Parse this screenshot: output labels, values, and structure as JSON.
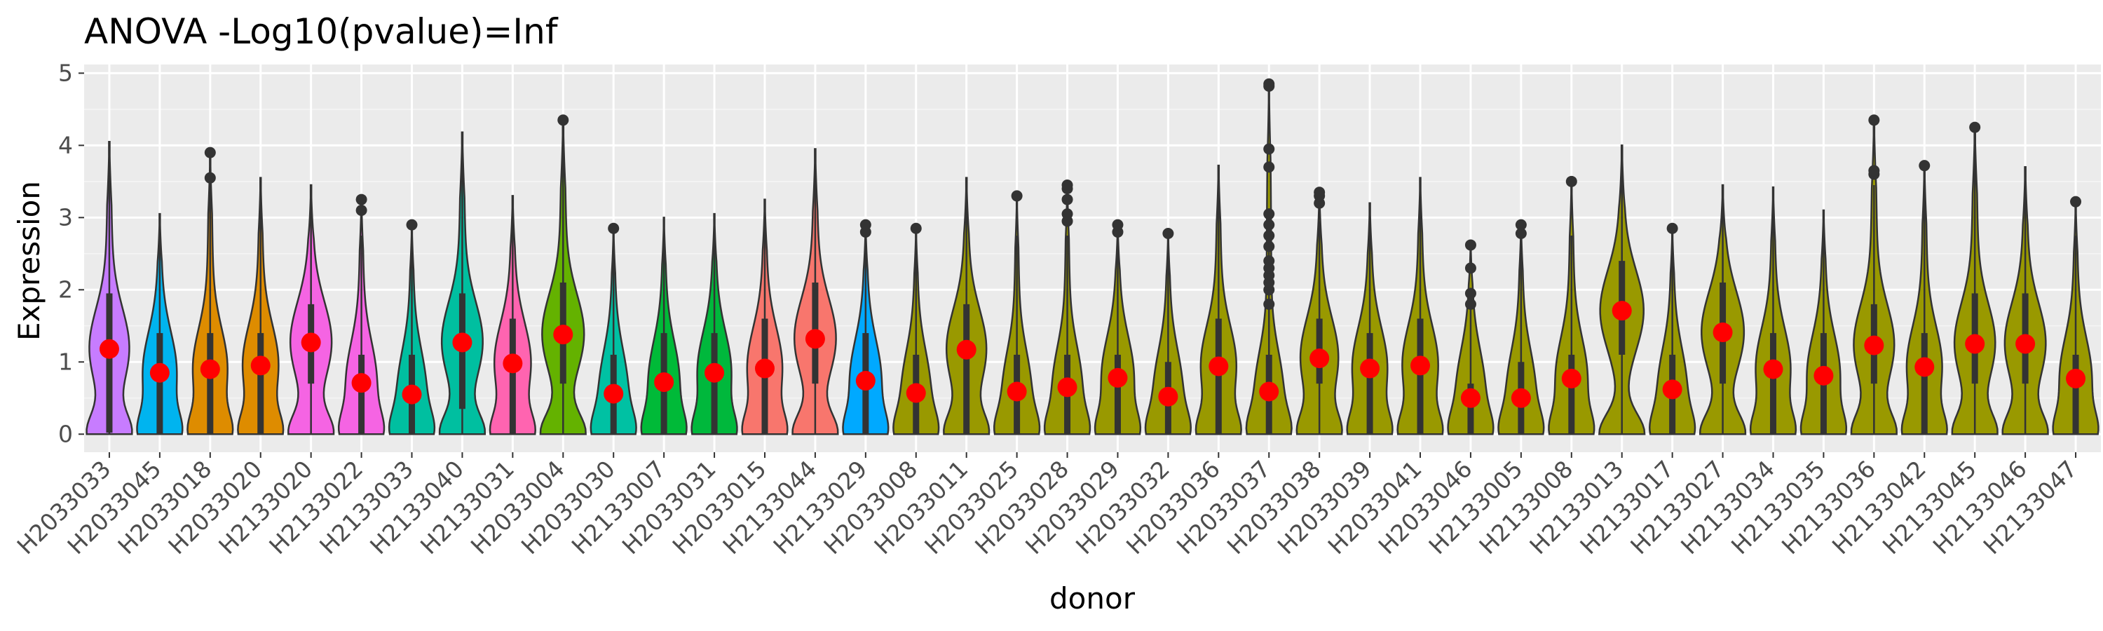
{
  "chart_data": {
    "type": "violin",
    "title": "ANOVA -Log10(pvalue)=Inf",
    "xlabel": "donor",
    "ylabel": "Expression",
    "ylim": [
      -0.25,
      5.12
    ],
    "yticks": [
      0,
      1,
      2,
      3,
      4,
      5
    ],
    "grid": true,
    "legend": "none",
    "summary_point_color": "#ff0000",
    "violin_outline_color": "#333333",
    "panel_background": "#ebebeb",
    "categories": [
      "H2033033",
      "H2033045",
      "H2033018",
      "H2033020",
      "H2133020",
      "H2133022",
      "H2133033",
      "H2133040",
      "H2133031",
      "H2033004",
      "H2033030",
      "H2133007",
      "H2033031",
      "H2033015",
      "H2133044",
      "H2133029",
      "H2033008",
      "H2033011",
      "H2033025",
      "H2033028",
      "H2033029",
      "H2033032",
      "H2033036",
      "H2033037",
      "H2033038",
      "H2033039",
      "H2033041",
      "H2033046",
      "H2133005",
      "H2133008",
      "H2133013",
      "H2133017",
      "H2133027",
      "H2133034",
      "H2133035",
      "H2133036",
      "H2133042",
      "H2133045",
      "H2133046",
      "H2133047"
    ],
    "colors": [
      "#c77cff",
      "#00b4ef",
      "#de8c00",
      "#de8c00",
      "#f564e3",
      "#f564e3",
      "#00bfa0",
      "#00bfa0",
      "#ff64b0",
      "#64b200",
      "#00c1a3",
      "#00ba38",
      "#00b83c",
      "#f8766d",
      "#f8766d",
      "#00a9ff",
      "#999900",
      "#999900",
      "#999900",
      "#999900",
      "#999900",
      "#999900",
      "#999900",
      "#999900",
      "#999900",
      "#999900",
      "#999900",
      "#999900",
      "#999900",
      "#999900",
      "#999900",
      "#999900",
      "#999900",
      "#999900",
      "#999900",
      "#999900",
      "#999900",
      "#999900",
      "#999900",
      "#999900"
    ],
    "violin_max": [
      4.05,
      3.05,
      3.9,
      3.55,
      3.45,
      3.25,
      2.9,
      4.18,
      3.3,
      4.35,
      2.85,
      3.0,
      3.05,
      3.25,
      3.95,
      2.9,
      2.85,
      3.55,
      3.3,
      3.45,
      2.9,
      2.8,
      3.72,
      4.85,
      3.35,
      3.2,
      3.55,
      2.65,
      2.9,
      3.5,
      4.0,
      2.85,
      3.45,
      3.42,
      3.1,
      4.35,
      3.72,
      4.25,
      3.7,
      3.22
    ],
    "mean": [
      1.18,
      0.85,
      0.9,
      0.95,
      1.27,
      0.71,
      0.55,
      1.27,
      0.98,
      1.38,
      0.56,
      0.72,
      0.85,
      0.91,
      1.32,
      0.74,
      0.57,
      1.17,
      0.59,
      0.65,
      0.78,
      0.52,
      0.94,
      0.59,
      1.05,
      0.91,
      0.95,
      0.5,
      0.5,
      0.77,
      1.71,
      0.62,
      1.41,
      0.9,
      0.81,
      1.23,
      0.93,
      1.25,
      1.25,
      0.77
    ],
    "box_q1": [
      0.02,
      0.0,
      0.0,
      0.0,
      0.7,
      0.0,
      0.0,
      0.35,
      0.0,
      0.7,
      0.0,
      0.0,
      0.0,
      0.0,
      0.7,
      0.0,
      0.0,
      0.0,
      0.0,
      0.0,
      0.0,
      0.0,
      0.0,
      0.0,
      0.7,
      0.0,
      0.0,
      0.0,
      0.0,
      0.0,
      1.1,
      0.0,
      0.7,
      0.0,
      0.0,
      0.7,
      0.0,
      0.7,
      0.7,
      0.0
    ],
    "box_q3": [
      1.95,
      1.4,
      1.4,
      1.4,
      1.8,
      1.1,
      1.1,
      1.95,
      1.6,
      2.1,
      1.1,
      1.4,
      1.4,
      1.6,
      2.1,
      1.4,
      1.1,
      1.8,
      1.1,
      1.1,
      1.1,
      1.0,
      1.6,
      1.1,
      1.6,
      1.4,
      1.6,
      0.7,
      1.0,
      1.1,
      2.4,
      1.1,
      2.1,
      1.4,
      1.4,
      1.8,
      1.4,
      1.95,
      1.95,
      1.1
    ],
    "outliers": [
      [],
      [],
      [
        3.55,
        3.9
      ],
      [],
      [],
      [
        3.1,
        3.25
      ],
      [
        2.9
      ],
      [],
      [],
      [
        4.35
      ],
      [
        2.85
      ],
      [],
      [],
      [],
      [],
      [
        2.8,
        2.9
      ],
      [
        2.85
      ],
      [],
      [
        3.3
      ],
      [
        2.95,
        3.05,
        3.25,
        3.4,
        3.45
      ],
      [
        2.8,
        2.9
      ],
      [
        2.78
      ],
      [],
      [
        1.8,
        2.0,
        2.1,
        2.2,
        2.3,
        2.4,
        2.6,
        2.75,
        2.9,
        3.05,
        3.7,
        3.95,
        4.82,
        4.85
      ],
      [
        3.2,
        3.3,
        3.35
      ],
      [],
      [],
      [
        1.8,
        1.95,
        2.3,
        2.62
      ],
      [
        2.78,
        2.9
      ],
      [
        3.5
      ],
      [],
      [
        2.85
      ],
      [],
      [],
      [],
      [
        3.6,
        3.65,
        4.35
      ],
      [
        3.72
      ],
      [
        4.25
      ],
      [],
      [
        3.22
      ]
    ]
  }
}
